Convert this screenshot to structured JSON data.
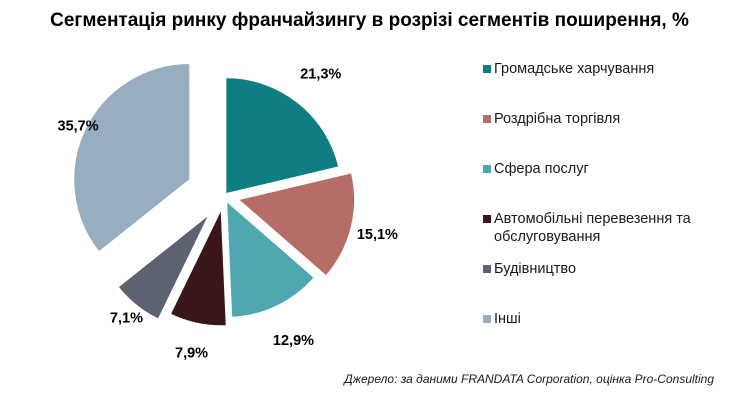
{
  "chart_data": {
    "type": "pie",
    "title": "Сегментація ринку франчайзингу в розрізі сегментів поширення, %",
    "slices": [
      {
        "label": "Громадське харчування",
        "value": 21.3,
        "value_label": "21,3%",
        "color": "#0E7E83"
      },
      {
        "label": "Роздрібна торгівля",
        "value": 15.1,
        "value_label": "15,1%",
        "color": "#B66D68"
      },
      {
        "label": "Сфера послуг",
        "value": 12.9,
        "value_label": "12,9%",
        "color": "#4FA8B0"
      },
      {
        "label": "Автомобільні перевезення та обслуговування",
        "value": 7.9,
        "value_label": "7,9%",
        "color": "#3A161A"
      },
      {
        "label": "Будівництво",
        "value": 7.1,
        "value_label": "7,1%",
        "color": "#5D6270"
      },
      {
        "label": "Інші",
        "value": 35.7,
        "value_label": "35,7%",
        "color": "#98ADBF"
      }
    ],
    "legend_position": "right"
  },
  "source": "Джерело: за даними FRANDATA Corporation, оцінка Pro-Consulting"
}
